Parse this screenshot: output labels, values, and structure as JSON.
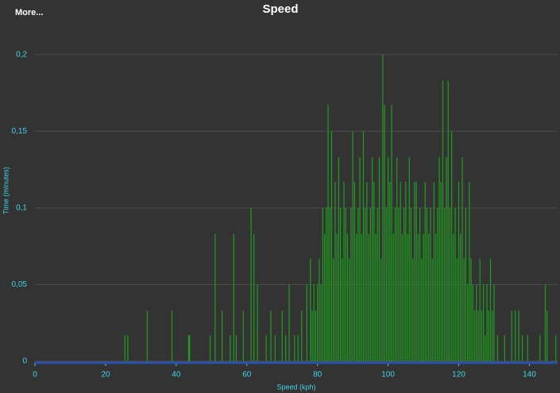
{
  "more_button": "More...",
  "chart_data": {
    "type": "spike",
    "title": "Speed",
    "x_label": "Speed (kph)",
    "y_label": "Time (minutes)",
    "color": "#1f9e1f",
    "grid": true,
    "xlim": [
      0,
      148
    ],
    "ylim": [
      0,
      0.22
    ],
    "xticks": [
      0,
      20,
      40,
      60,
      80,
      100,
      120,
      140
    ],
    "yticks": [
      {
        "value": 0,
        "label": "0"
      },
      {
        "value": 0.05,
        "label": "0,05"
      },
      {
        "value": 0.1,
        "label": "0,1"
      },
      {
        "value": 0.15,
        "label": "0,15"
      },
      {
        "value": 0.2,
        "label": "0,2"
      }
    ],
    "x": [
      25.5,
      26.3,
      31.8,
      38.8,
      43.5,
      43.8,
      49.6,
      51,
      53,
      55.3,
      56.3,
      57,
      59,
      61.2,
      62,
      63,
      65.5,
      66.8,
      68,
      70,
      71,
      72,
      73.5,
      74.5,
      75.5,
      77,
      78,
      78.5,
      79,
      79.5,
      80,
      80.5,
      81,
      81.5,
      82,
      82.5,
      83,
      83.5,
      84,
      84.5,
      85,
      85.5,
      86,
      86.5,
      87,
      87.5,
      88,
      88.5,
      89,
      89.5,
      90,
      90.5,
      91,
      91.5,
      92,
      92.5,
      93,
      93.5,
      94,
      94.5,
      95,
      95.5,
      96,
      96.5,
      97,
      97.5,
      98,
      98.5,
      99,
      99.5,
      100,
      100.5,
      101,
      101.5,
      102,
      102.5,
      103,
      103.5,
      104,
      104.5,
      105,
      105.5,
      106,
      106.5,
      107,
      107.5,
      108,
      108.5,
      109,
      109.5,
      110,
      110.5,
      111,
      111.5,
      112,
      112.5,
      113,
      113.5,
      114,
      114.5,
      115,
      115.5,
      116,
      116.5,
      117,
      117.5,
      118,
      118.5,
      119,
      119.5,
      120,
      120.5,
      121,
      121.5,
      122,
      122.5,
      123,
      123.5,
      124,
      124.5,
      125,
      125.5,
      126,
      126.5,
      127,
      127.5,
      128,
      128.5,
      129,
      129.5,
      130,
      131,
      133,
      135,
      136,
      137,
      138,
      139.5,
      143,
      144.5,
      145,
      147.5
    ],
    "values": [
      0.017,
      0.017,
      0.033,
      0.033,
      0.017,
      0.017,
      0.017,
      0.083,
      0.033,
      0.017,
      0.083,
      0.017,
      0.033,
      0.1,
      0.083,
      0.05,
      0.017,
      0.033,
      0.017,
      0.033,
      0.017,
      0.05,
      0.017,
      0.017,
      0.033,
      0.05,
      0.067,
      0.033,
      0.05,
      0.033,
      0.05,
      0.067,
      0.05,
      0.1,
      0.083,
      0.1,
      0.167,
      0.1,
      0.15,
      0.067,
      0.117,
      0.083,
      0.133,
      0.1,
      0.067,
      0.117,
      0.1,
      0.083,
      0.067,
      0.1,
      0.15,
      0.117,
      0.083,
      0.1,
      0.133,
      0.083,
      0.15,
      0.1,
      0.117,
      0.083,
      0.1,
      0.133,
      0.117,
      0.083,
      0.1,
      0.133,
      0.067,
      0.2,
      0.167,
      0.1,
      0.133,
      0.117,
      0.167,
      0.083,
      0.1,
      0.133,
      0.1,
      0.117,
      0.083,
      0.1,
      0.117,
      0.083,
      0.133,
      0.1,
      0.067,
      0.117,
      0.117,
      0.083,
      0.1,
      0.067,
      0.083,
      0.117,
      0.1,
      0.083,
      0.1,
      0.067,
      0.117,
      0.083,
      0.1,
      0.133,
      0.117,
      0.183,
      0.1,
      0.133,
      0.183,
      0.1,
      0.15,
      0.083,
      0.1,
      0.067,
      0.117,
      0.083,
      0.133,
      0.067,
      0.1,
      0.05,
      0.117,
      0.067,
      0.05,
      0.033,
      0.05,
      0.033,
      0.067,
      0.033,
      0.05,
      0.017,
      0.05,
      0.033,
      0.067,
      0.033,
      0.05,
      0.017,
      0.017,
      0.033,
      0.033,
      0.033,
      0.017,
      0.017,
      0.017,
      0.05,
      0.033,
      0.017
    ]
  }
}
